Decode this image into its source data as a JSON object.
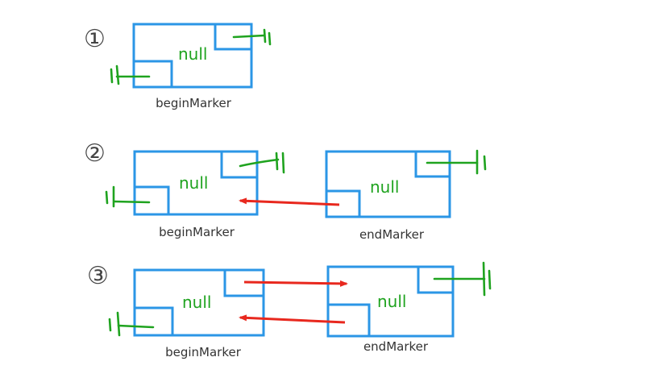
{
  "steps": [
    {
      "number": "①",
      "nodes": [
        {
          "null_text": "null",
          "label": "beginMarker"
        }
      ]
    },
    {
      "number": "②",
      "nodes": [
        {
          "null_text": "null",
          "label": "beginMarker"
        },
        {
          "null_text": "null",
          "label": "endMarker"
        }
      ]
    },
    {
      "number": "③",
      "nodes": [
        {
          "null_text": "null",
          "label": "beginMarker"
        },
        {
          "null_text": "null",
          "label": "endMarker"
        }
      ]
    }
  ],
  "colors": {
    "box": "#2b96e6",
    "null_pointer": "#1fa31f",
    "link_arrow": "#e8281e"
  }
}
